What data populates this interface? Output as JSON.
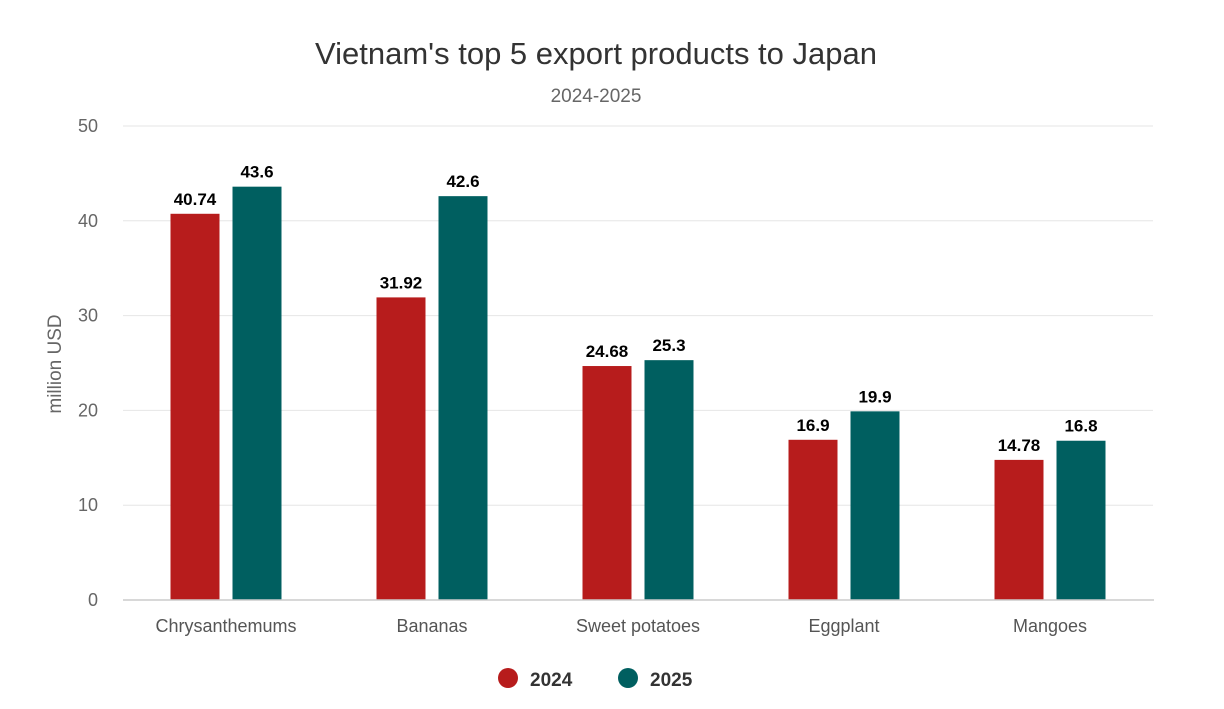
{
  "chart_data": {
    "type": "bar",
    "title": "Vietnam's top 5 export products to Japan",
    "subtitle": "2024-2025",
    "xlabel": "",
    "ylabel": "million USD",
    "ylim": [
      0,
      50
    ],
    "yticks": [
      0,
      10,
      20,
      30,
      40,
      50
    ],
    "grid": true,
    "legend_position": "bottom-center",
    "categories": [
      "Chrysanthemums",
      "Bananas",
      "Sweet potatoes",
      "Eggplant",
      "Mangoes"
    ],
    "series": [
      {
        "name": "2024",
        "color": "#b71c1c",
        "values": [
          40.74,
          31.92,
          24.68,
          16.9,
          14.78
        ],
        "labels": [
          "40.74",
          "31.92",
          "24.68",
          "16.9",
          "14.78"
        ]
      },
      {
        "name": "2025",
        "color": "#005f60",
        "values": [
          43.6,
          42.6,
          25.3,
          19.9,
          16.8
        ],
        "labels": [
          "43.6",
          "42.6",
          "25.3",
          "19.9",
          "16.8"
        ]
      }
    ]
  }
}
